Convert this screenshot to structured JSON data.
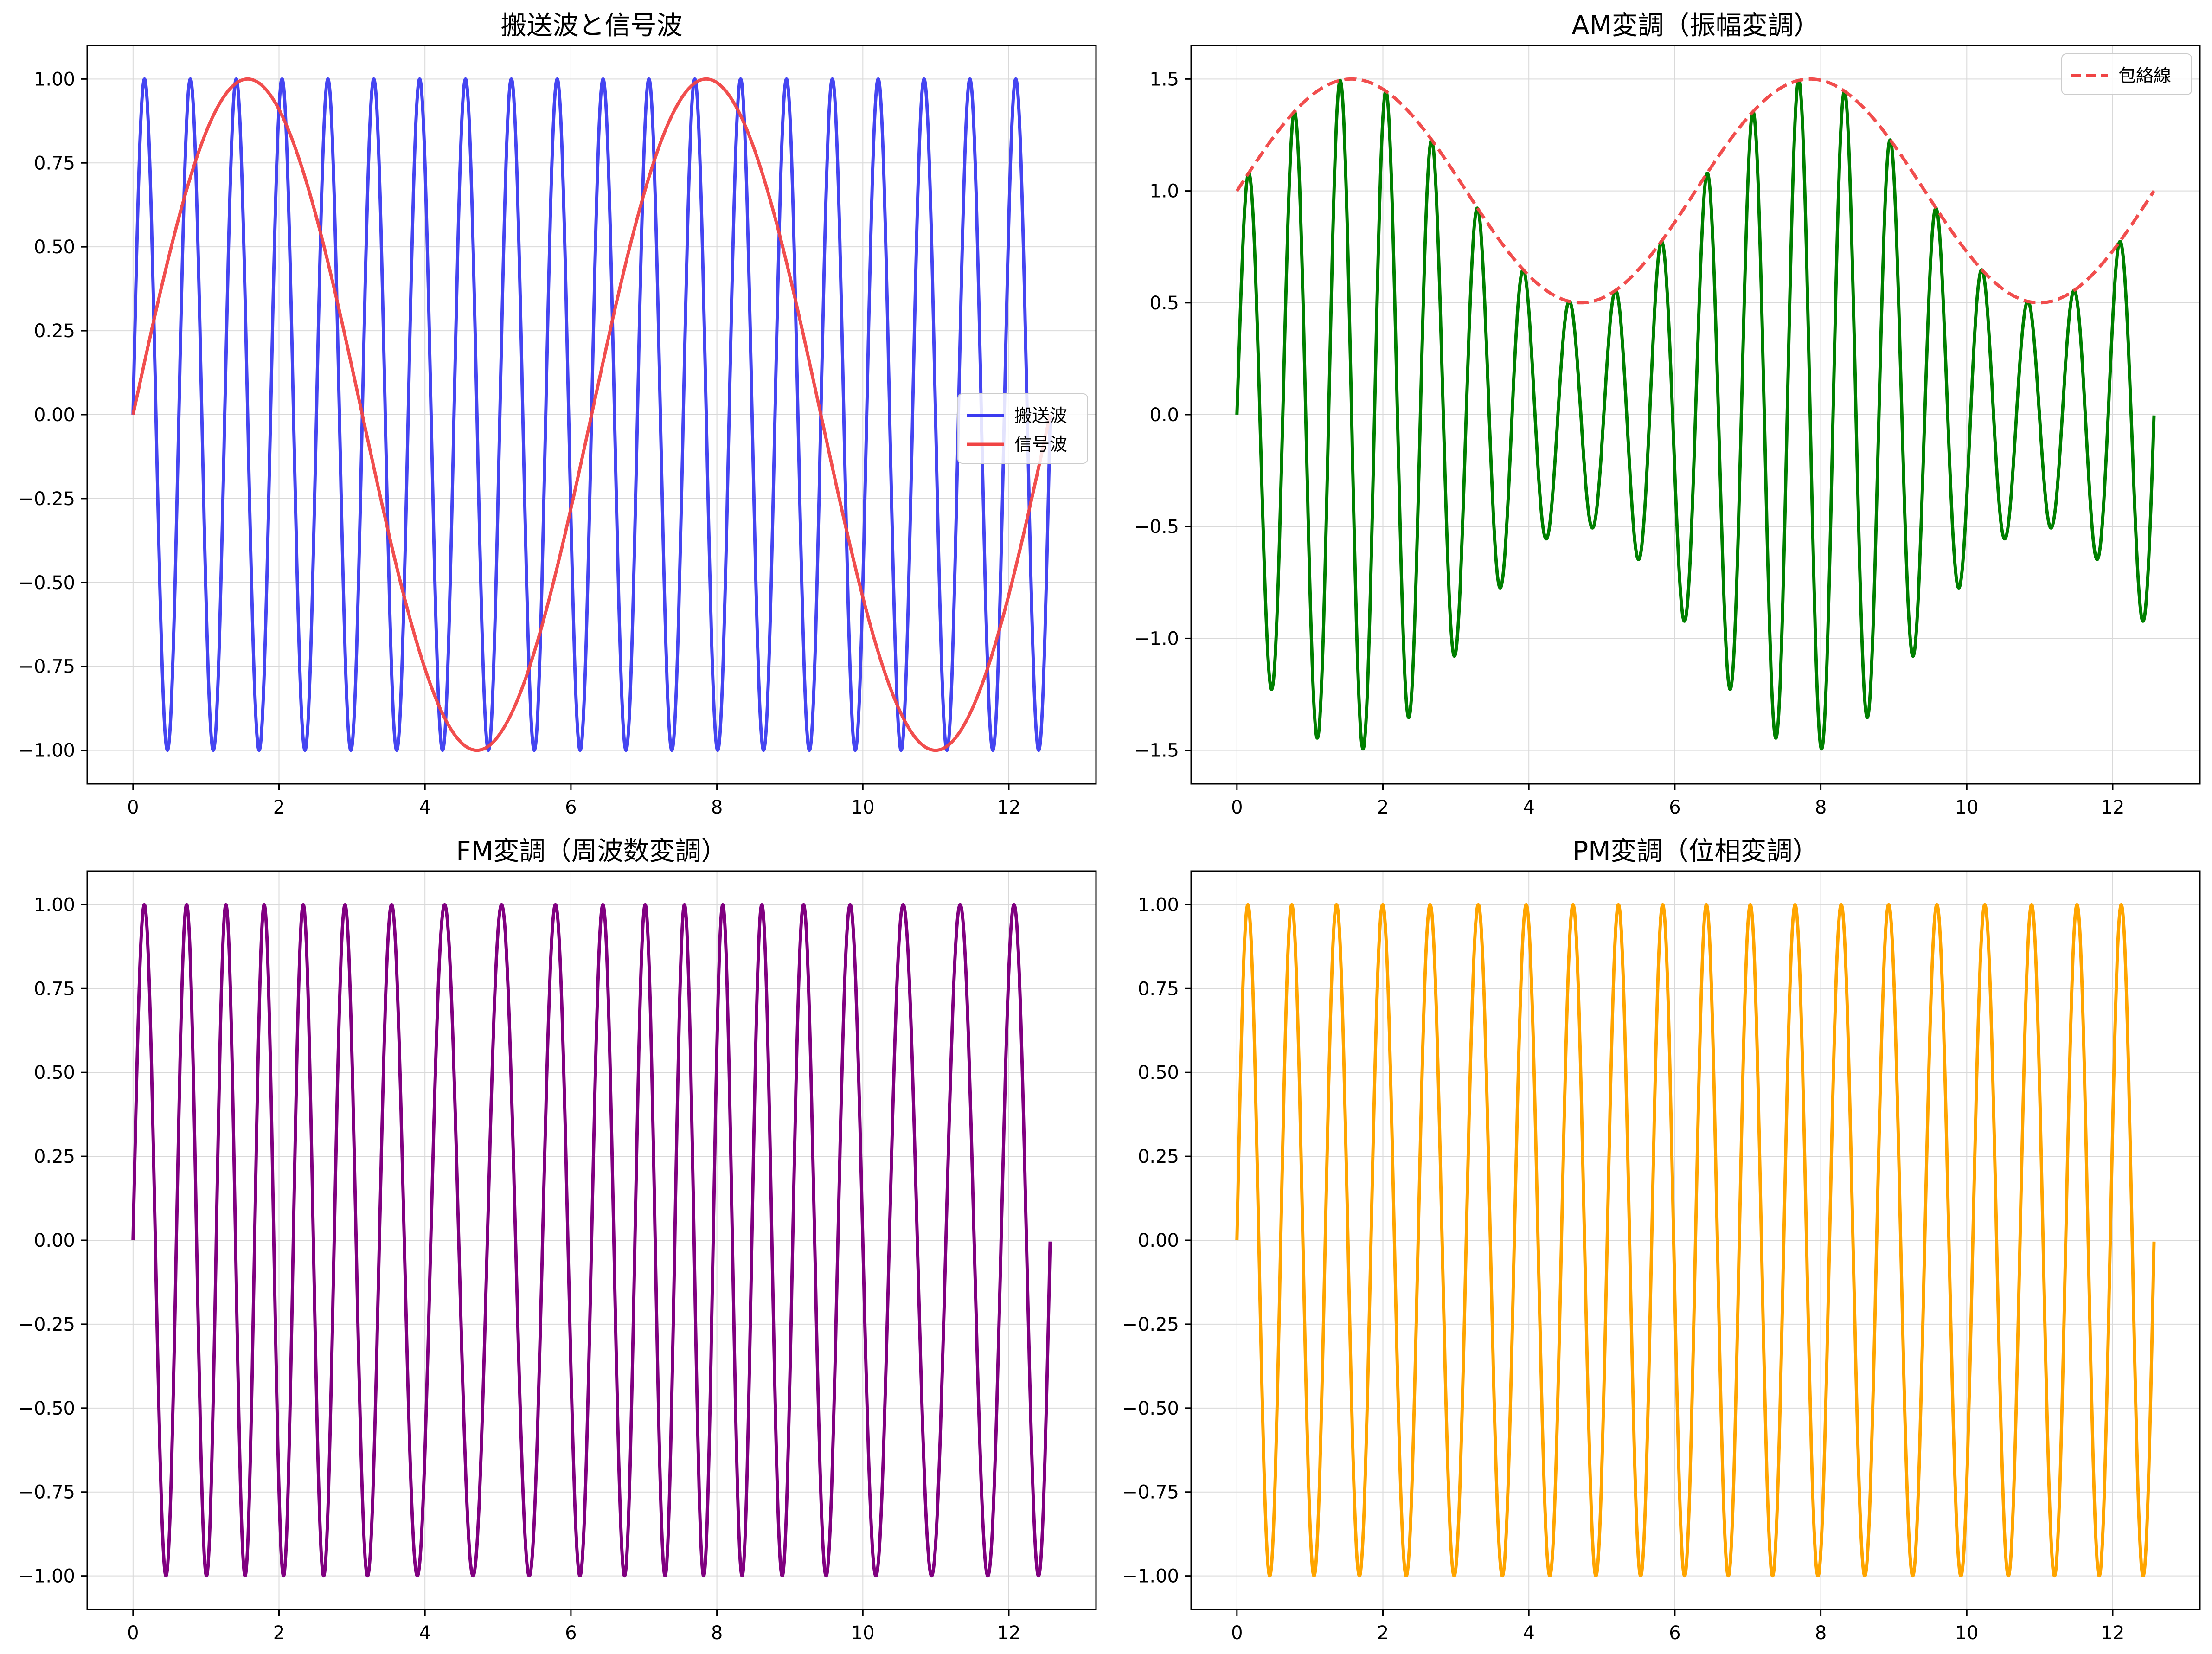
{
  "chart_data": [
    {
      "type": "line",
      "title": "搬送波と信号波",
      "xlabel": "",
      "ylabel": "",
      "xlim": [
        -0.628,
        13.195
      ],
      "ylim": [
        -1.1,
        1.1
      ],
      "xticks": [
        0,
        2,
        4,
        6,
        8,
        10,
        12
      ],
      "yticks": [
        -1.0,
        -0.75,
        -0.5,
        -0.25,
        0.0,
        0.25,
        0.5,
        0.75,
        1.0
      ],
      "ytick_labels": [
        "−1.00",
        "−0.75",
        "−0.50",
        "−0.25",
        "0.00",
        "0.25",
        "0.50",
        "0.75",
        "1.00"
      ],
      "grid": true,
      "legend": "center-right",
      "series": [
        {
          "name": "搬送波",
          "formula": "sin(10x)",
          "x_range": [
            0,
            12.566
          ],
          "color": "#3b3bf0",
          "style": "solid"
        },
        {
          "name": "信号波",
          "formula": "sin(x)",
          "x_range": [
            0,
            12.566
          ],
          "color": "#f04444",
          "style": "solid"
        }
      ]
    },
    {
      "type": "line",
      "title": "AM変調（振幅変調）",
      "xlabel": "",
      "ylabel": "",
      "xlim": [
        -0.628,
        13.195
      ],
      "ylim": [
        -1.65,
        1.65
      ],
      "xticks": [
        0,
        2,
        4,
        6,
        8,
        10,
        12
      ],
      "yticks": [
        -1.5,
        -1.0,
        -0.5,
        0.0,
        0.5,
        1.0,
        1.5
      ],
      "ytick_labels": [
        "−1.5",
        "−1.0",
        "−0.5",
        "0.0",
        "0.5",
        "1.0",
        "1.5"
      ],
      "grid": true,
      "legend": "top-right",
      "series": [
        {
          "name": "",
          "formula": "(1+0.5·sin(x))·sin(10x)",
          "x_range": [
            0,
            12.566
          ],
          "color": "#008000",
          "style": "solid"
        },
        {
          "name": "包絡線",
          "formula": "1+0.5·sin(x)",
          "x_range": [
            0,
            12.566
          ],
          "color": "#f04444",
          "style": "dashed"
        }
      ]
    },
    {
      "type": "line",
      "title": "FM変調（周波数変調）",
      "xlabel": "",
      "ylabel": "",
      "xlim": [
        -0.628,
        13.195
      ],
      "ylim": [
        -1.1,
        1.1
      ],
      "xticks": [
        0,
        2,
        4,
        6,
        8,
        10,
        12
      ],
      "yticks": [
        -1.0,
        -0.75,
        -0.5,
        -0.25,
        0.0,
        0.25,
        0.5,
        0.75,
        1.0
      ],
      "ytick_labels": [
        "−1.00",
        "−0.75",
        "−0.50",
        "−0.25",
        "0.00",
        "0.25",
        "0.50",
        "0.75",
        "1.00"
      ],
      "grid": true,
      "series": [
        {
          "name": "",
          "formula": "sin(10x + 2·(1 − cos(x)))",
          "x_range": [
            0,
            12.566
          ],
          "color": "#800080",
          "style": "solid"
        }
      ]
    },
    {
      "type": "line",
      "title": "PM変調（位相変調）",
      "xlabel": "",
      "ylabel": "",
      "xlim": [
        -0.628,
        13.195
      ],
      "ylim": [
        -1.1,
        1.1
      ],
      "xticks": [
        0,
        2,
        4,
        6,
        8,
        10,
        12
      ],
      "yticks": [
        -1.0,
        -0.75,
        -0.5,
        -0.25,
        0.0,
        0.25,
        0.5,
        0.75,
        1.0
      ],
      "ytick_labels": [
        "−1.00",
        "−0.75",
        "−0.50",
        "−0.25",
        "0.00",
        "0.25",
        "0.50",
        "0.75",
        "1.00"
      ],
      "grid": true,
      "series": [
        {
          "name": "",
          "formula": "sin(10x + 0.5·sin(x))",
          "x_range": [
            0,
            12.566
          ],
          "color": "#ffa500",
          "style": "solid"
        }
      ]
    }
  ]
}
